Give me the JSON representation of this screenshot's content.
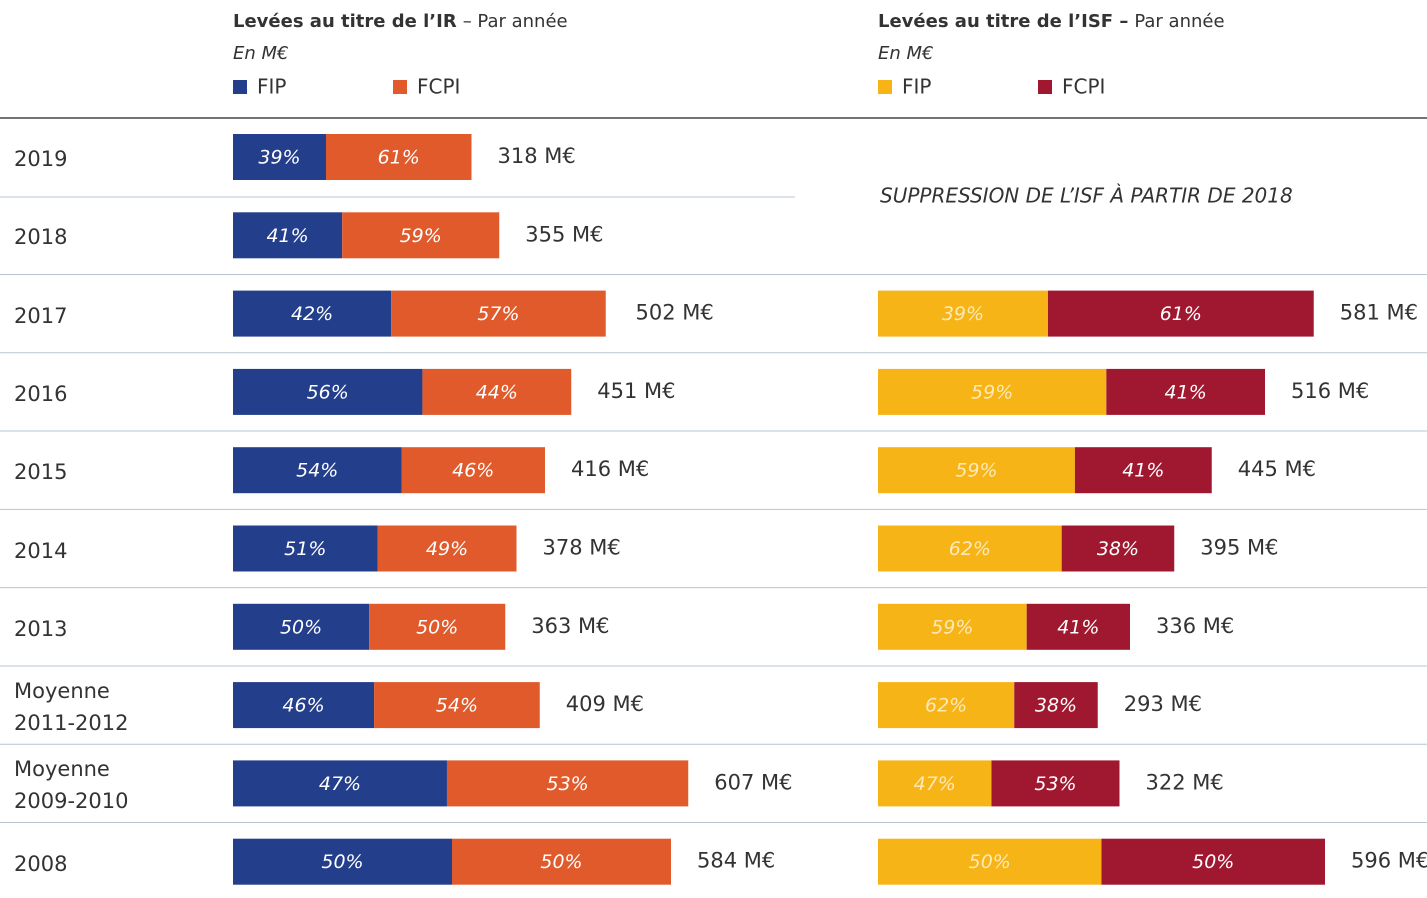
{
  "chart_data": [
    {
      "type": "stacked-bar-horizontal",
      "title": "Levées au titre de l’IR",
      "title_suffix": "– Par année",
      "subtitle": "En M€",
      "categories": [
        "2019",
        "2018",
        "2017",
        "2016",
        "2015",
        "2014",
        "2013",
        "Moyenne 2011-2012",
        "Moyenne 2009-2010",
        "2008"
      ],
      "series": [
        {
          "name": "FIP",
          "color": "#233e8b",
          "values": [
            39,
            41,
            42,
            56,
            54,
            51,
            50,
            46,
            47,
            50
          ],
          "value_labels": [
            "39%",
            "41%",
            "42%",
            "56%",
            "54%",
            "51%",
            "50%",
            "46%",
            "47%",
            "50%"
          ]
        },
        {
          "name": "FCPI",
          "color": "#e05a2b",
          "values": [
            61,
            59,
            57,
            44,
            46,
            49,
            50,
            54,
            53,
            50
          ],
          "value_labels": [
            "61%",
            "59%",
            "57%",
            "44%",
            "46%",
            "49%",
            "50%",
            "54%",
            "53%",
            "50%"
          ]
        }
      ],
      "totals": {
        "values": [
          318,
          355,
          502,
          451,
          416,
          378,
          363,
          409,
          607,
          584
        ],
        "value_labels": [
          "318 M€",
          "355 M€",
          "502 M€",
          "451 M€",
          "416 M€",
          "378 M€",
          "363 M€",
          "409 M€",
          "607 M€",
          "584 M€"
        ]
      }
    },
    {
      "type": "stacked-bar-horizontal",
      "title": "Levées au titre de l’ISF –",
      "title_suffix": "Par année",
      "subtitle": "En M€",
      "annotation": "SUPPRESSION DE L’ISF À PARTIR DE 2018",
      "series": [
        {
          "name": "FIP",
          "color": "#f7b417",
          "values": [
            null,
            null,
            39,
            59,
            59,
            62,
            59,
            62,
            47,
            50
          ],
          "value_labels": [
            null,
            null,
            "39%",
            "59%",
            "59%",
            "62%",
            "59%",
            "62%",
            "47%",
            "50%"
          ]
        },
        {
          "name": "FCPI",
          "color": "#a01830",
          "values": [
            null,
            null,
            61,
            41,
            41,
            38,
            41,
            38,
            53,
            50
          ],
          "value_labels": [
            null,
            null,
            "61%",
            "41%",
            "41%",
            "38%",
            "41%",
            "38%",
            "53%",
            "50%"
          ]
        }
      ],
      "totals": {
        "values": [
          null,
          null,
          581,
          516,
          445,
          395,
          336,
          293,
          322,
          596
        ],
        "value_labels": [
          null,
          null,
          "581 M€",
          "516 M€",
          "445 M€",
          "395 M€",
          "336 M€",
          "293 M€",
          "322 M€",
          "596 M€"
        ]
      }
    }
  ]
}
